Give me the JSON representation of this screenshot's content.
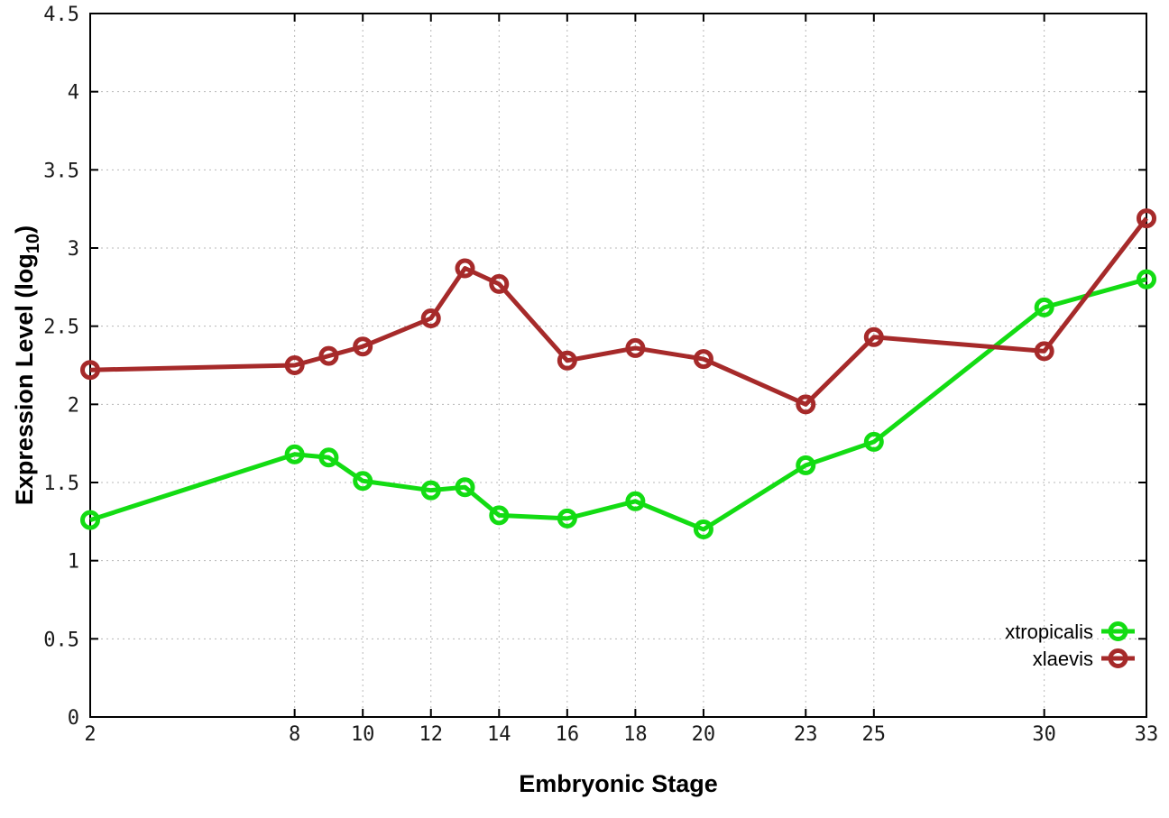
{
  "chart_data": {
    "type": "line",
    "title": "",
    "xlabel": "Embryonic Stage",
    "ylabel": "Expression Level (log10)",
    "ylabel_parts": {
      "main": "Expression Level (log",
      "subscript": "10",
      "suffix": ")"
    },
    "xlim": [
      2,
      33
    ],
    "ylim": [
      0,
      4.5
    ],
    "x_ticks": [
      2,
      8,
      10,
      12,
      14,
      16,
      18,
      20,
      23,
      25,
      30,
      33
    ],
    "x_tick_labels": [
      "2",
      "8",
      "10",
      "12",
      "14",
      "16",
      "18",
      "20",
      "23",
      "25",
      "30",
      "33"
    ],
    "y_ticks": [
      0,
      0.5,
      1,
      1.5,
      2,
      2.5,
      3,
      3.5,
      4,
      4.5
    ],
    "y_tick_labels": [
      "0",
      "0.5",
      "1",
      "1.5",
      "2",
      "2.5",
      "3",
      "3.5",
      "4",
      "4.5"
    ],
    "grid": true,
    "x": [
      2,
      8,
      9,
      10,
      12,
      13,
      14,
      16,
      18,
      20,
      23,
      25,
      30,
      33
    ],
    "series": [
      {
        "name": "xtropicalis",
        "color": "#13dc13",
        "marker": "open-circle",
        "values": [
          1.26,
          1.68,
          1.66,
          1.51,
          1.45,
          1.47,
          1.29,
          1.27,
          1.38,
          1.2,
          1.61,
          1.76,
          2.62,
          2.8
        ]
      },
      {
        "name": "xlaevis",
        "color": "#a62a2a",
        "marker": "open-circle",
        "values": [
          2.22,
          2.25,
          2.31,
          2.37,
          2.55,
          2.87,
          2.77,
          2.28,
          2.36,
          2.29,
          2.0,
          2.43,
          2.34,
          3.19
        ]
      }
    ],
    "legend": {
      "position": "bottom-right",
      "entries": [
        "xtropicalis",
        "xlaevis"
      ]
    },
    "colors": {
      "background": "#ffffff",
      "axis": "#000000",
      "grid": "#b8b8b8",
      "tick_label": "#1a1a1a"
    }
  }
}
